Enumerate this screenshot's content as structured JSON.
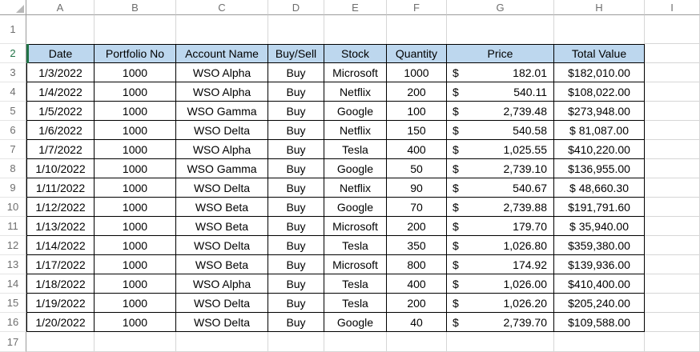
{
  "sheet": {
    "column_letters": [
      "A",
      "B",
      "C",
      "D",
      "E",
      "F",
      "G",
      "H",
      "I"
    ],
    "chrome_row_numbers": [
      "1",
      "2",
      "17"
    ],
    "icons": {
      "select_all": "select-all-triangle-icon"
    },
    "colors": {
      "header_fill": "#BDD7EE",
      "active_green": "#217346",
      "table_border": "#000000",
      "gridline": "#D6D6D6",
      "chrome_text": "#6E6E6E"
    }
  },
  "table": {
    "headers": {
      "date": "Date",
      "portfolio_no": "Portfolio No",
      "account_name": "Account Name",
      "buy_sell": "Buy/Sell",
      "stock": "Stock",
      "quantity": "Quantity",
      "price": "Price",
      "total_value": "Total Value"
    },
    "rows": [
      {
        "row_num": "3",
        "date": "1/3/2022",
        "portfolio_no": "1000",
        "account_name": "WSO Alpha",
        "buy_sell": "Buy",
        "stock": "Microsoft",
        "quantity": "1000",
        "price_symbol": "$",
        "price": "182.01",
        "total_value": "$182,010.00"
      },
      {
        "row_num": "4",
        "date": "1/4/2022",
        "portfolio_no": "1000",
        "account_name": "WSO Alpha",
        "buy_sell": "Buy",
        "stock": "Netflix",
        "quantity": "200",
        "price_symbol": "$",
        "price": "540.11",
        "total_value": "$108,022.00"
      },
      {
        "row_num": "5",
        "date": "1/5/2022",
        "portfolio_no": "1000",
        "account_name": "WSO Gamma",
        "buy_sell": "Buy",
        "stock": "Google",
        "quantity": "100",
        "price_symbol": "$",
        "price": "2,739.48",
        "total_value": "$273,948.00"
      },
      {
        "row_num": "6",
        "date": "1/6/2022",
        "portfolio_no": "1000",
        "account_name": "WSO Delta",
        "buy_sell": "Buy",
        "stock": "Netflix",
        "quantity": "150",
        "price_symbol": "$",
        "price": "540.58",
        "total_value": "$ 81,087.00"
      },
      {
        "row_num": "7",
        "date": "1/7/2022",
        "portfolio_no": "1000",
        "account_name": "WSO Alpha",
        "buy_sell": "Buy",
        "stock": "Tesla",
        "quantity": "400",
        "price_symbol": "$",
        "price": "1,025.55",
        "total_value": "$410,220.00"
      },
      {
        "row_num": "8",
        "date": "1/10/2022",
        "portfolio_no": "1000",
        "account_name": "WSO Gamma",
        "buy_sell": "Buy",
        "stock": "Google",
        "quantity": "50",
        "price_symbol": "$",
        "price": "2,739.10",
        "total_value": "$136,955.00"
      },
      {
        "row_num": "9",
        "date": "1/11/2022",
        "portfolio_no": "1000",
        "account_name": "WSO Delta",
        "buy_sell": "Buy",
        "stock": "Netflix",
        "quantity": "90",
        "price_symbol": "$",
        "price": "540.67",
        "total_value": "$ 48,660.30"
      },
      {
        "row_num": "10",
        "date": "1/12/2022",
        "portfolio_no": "1000",
        "account_name": "WSO Beta",
        "buy_sell": "Buy",
        "stock": "Google",
        "quantity": "70",
        "price_symbol": "$",
        "price": "2,739.88",
        "total_value": "$191,791.60"
      },
      {
        "row_num": "11",
        "date": "1/13/2022",
        "portfolio_no": "1000",
        "account_name": "WSO Beta",
        "buy_sell": "Buy",
        "stock": "Microsoft",
        "quantity": "200",
        "price_symbol": "$",
        "price": "179.70",
        "total_value": "$ 35,940.00"
      },
      {
        "row_num": "12",
        "date": "1/14/2022",
        "portfolio_no": "1000",
        "account_name": "WSO Delta",
        "buy_sell": "Buy",
        "stock": "Tesla",
        "quantity": "350",
        "price_symbol": "$",
        "price": "1,026.80",
        "total_value": "$359,380.00"
      },
      {
        "row_num": "13",
        "date": "1/17/2022",
        "portfolio_no": "1000",
        "account_name": "WSO Beta",
        "buy_sell": "Buy",
        "stock": "Microsoft",
        "quantity": "800",
        "price_symbol": "$",
        "price": "174.92",
        "total_value": "$139,936.00"
      },
      {
        "row_num": "14",
        "date": "1/18/2022",
        "portfolio_no": "1000",
        "account_name": "WSO Alpha",
        "buy_sell": "Buy",
        "stock": "Tesla",
        "quantity": "400",
        "price_symbol": "$",
        "price": "1,026.00",
        "total_value": "$410,400.00"
      },
      {
        "row_num": "15",
        "date": "1/19/2022",
        "portfolio_no": "1000",
        "account_name": "WSO Delta",
        "buy_sell": "Buy",
        "stock": "Tesla",
        "quantity": "200",
        "price_symbol": "$",
        "price": "1,026.20",
        "total_value": "$205,240.00"
      },
      {
        "row_num": "16",
        "date": "1/20/2022",
        "portfolio_no": "1000",
        "account_name": "WSO Delta",
        "buy_sell": "Buy",
        "stock": "Google",
        "quantity": "40",
        "price_symbol": "$",
        "price": "2,739.70",
        "total_value": "$109,588.00"
      }
    ]
  }
}
